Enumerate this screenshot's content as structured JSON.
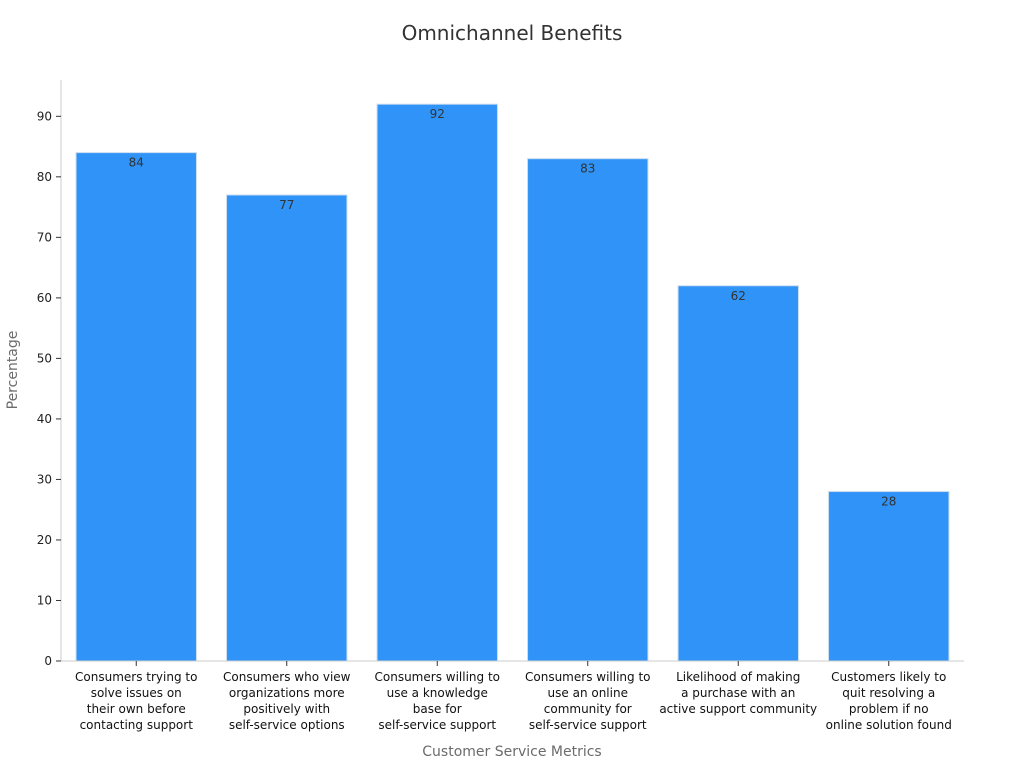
{
  "chart_data": {
    "type": "bar",
    "title": "Omnichannel Benefits",
    "xlabel": "Customer Service Metrics",
    "ylabel": "Percentage",
    "categories": [
      [
        "Consumers trying to",
        "solve issues on",
        "their own before",
        "contacting support"
      ],
      [
        "Consumers who view",
        "organizations more",
        "positively with",
        "self-service options"
      ],
      [
        "Consumers willing to",
        "use a knowledge",
        "base for",
        "self-service support"
      ],
      [
        "Consumers willing to",
        "use an online",
        "community for",
        "self-service support"
      ],
      [
        "Likelihood of making",
        "a purchase with an",
        "active support community"
      ],
      [
        "Customers likely to",
        "quit resolving a",
        "problem if no",
        "online solution found"
      ]
    ],
    "values": [
      84,
      77,
      92,
      83,
      62,
      28
    ],
    "data_labels": [
      "84",
      "77",
      "92",
      "83",
      "62",
      "28"
    ],
    "ylim": [
      0,
      96
    ],
    "yticks": [
      0,
      10,
      20,
      30,
      40,
      50,
      60,
      70,
      80,
      90
    ],
    "grid": false,
    "legend": "none",
    "colors": {
      "bar": "#2f93f7",
      "bar_edge": "#c8dcef",
      "axis": "#cccccc"
    }
  }
}
